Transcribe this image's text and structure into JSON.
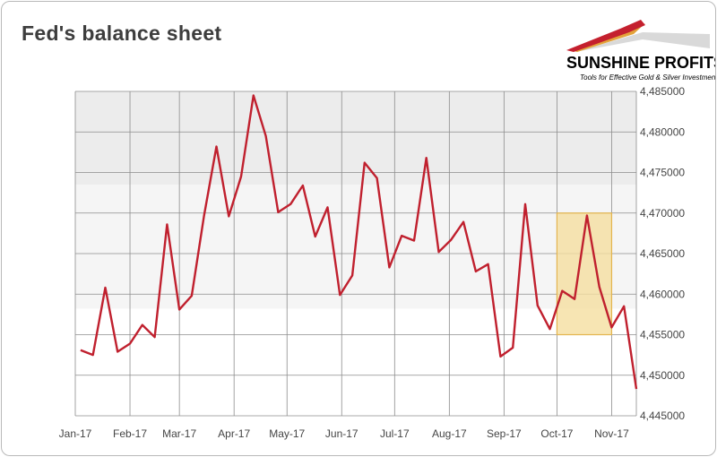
{
  "title": "Fed's balance sheet",
  "logo": {
    "brand": "SUNSHINE PROFITS",
    "tagline": "Tools for Effective Gold & Silver Investments",
    "colors": [
      "#c4202e",
      "#e3a33a",
      "#cccccc"
    ]
  },
  "chart_data": {
    "type": "line",
    "title": "Fed's balance sheet",
    "xlabel": "",
    "ylabel": "",
    "y_axis_side": "right",
    "ylim": [
      4445000,
      4485000
    ],
    "y_ticks": [
      4445000,
      4450000,
      4455000,
      4460000,
      4465000,
      4470000,
      4475000,
      4480000,
      4485000
    ],
    "y_tick_labels": [
      "4,445000",
      "4,450000",
      "4,455000",
      "4,460000",
      "4,465000",
      "4,470000",
      "4,475000",
      "4,480000",
      "4,485000"
    ],
    "x_range": [
      "2017-01-01",
      "2017-11-15"
    ],
    "x_tick_dates": [
      "2017-01-01",
      "2017-02-01",
      "2017-03-01",
      "2017-04-01",
      "2017-05-01",
      "2017-06-01",
      "2017-07-01",
      "2017-08-01",
      "2017-09-01",
      "2017-10-01",
      "2017-11-01"
    ],
    "x_tick_labels": [
      "Jan-17",
      "Feb-17",
      "Mar-17",
      "Apr-17",
      "May-17",
      "Jun-17",
      "Jul-17",
      "Aug-17",
      "Sep-17",
      "Oct-17",
      "Nov-17"
    ],
    "grid": true,
    "series_color": "#c0202e",
    "highlight": {
      "x_range": [
        "2017-10-01",
        "2017-11-01"
      ],
      "y_range": [
        4455000,
        4470000
      ],
      "color": "#f5dfa0"
    },
    "series": [
      {
        "x": [
          "2017-01-04",
          "2017-01-11",
          "2017-01-18",
          "2017-01-25",
          "2017-02-01",
          "2017-02-08",
          "2017-02-15",
          "2017-02-22",
          "2017-03-01",
          "2017-03-08",
          "2017-03-15",
          "2017-03-22",
          "2017-03-29",
          "2017-04-05",
          "2017-04-12",
          "2017-04-19",
          "2017-04-26",
          "2017-05-03",
          "2017-05-10",
          "2017-05-17",
          "2017-05-24",
          "2017-05-31",
          "2017-06-07",
          "2017-06-14",
          "2017-06-21",
          "2017-06-28",
          "2017-07-05",
          "2017-07-12",
          "2017-07-19",
          "2017-07-26",
          "2017-08-02",
          "2017-08-09",
          "2017-08-16",
          "2017-08-23",
          "2017-08-30",
          "2017-09-06",
          "2017-09-13",
          "2017-09-20",
          "2017-09-27",
          "2017-10-04",
          "2017-10-11",
          "2017-10-18",
          "2017-10-25",
          "2017-11-01",
          "2017-11-08",
          "2017-11-15"
        ],
        "values": [
          4453100,
          4452500,
          4460800,
          4452900,
          4453900,
          4456200,
          4454700,
          4468600,
          4458100,
          4459800,
          4469700,
          4478200,
          4469600,
          4474500,
          4484500,
          4479500,
          4470100,
          4471100,
          4473400,
          4467100,
          4470700,
          4459900,
          4462300,
          4476200,
          4474300,
          4463300,
          4467200,
          4466600,
          4476800,
          4465200,
          4466700,
          4468900,
          4462800,
          4463700,
          4452300,
          4453400,
          4471100,
          4458600,
          4455700,
          4460400,
          4459400,
          4469700,
          4460900,
          4455900,
          4458500,
          4448300
        ]
      }
    ]
  }
}
